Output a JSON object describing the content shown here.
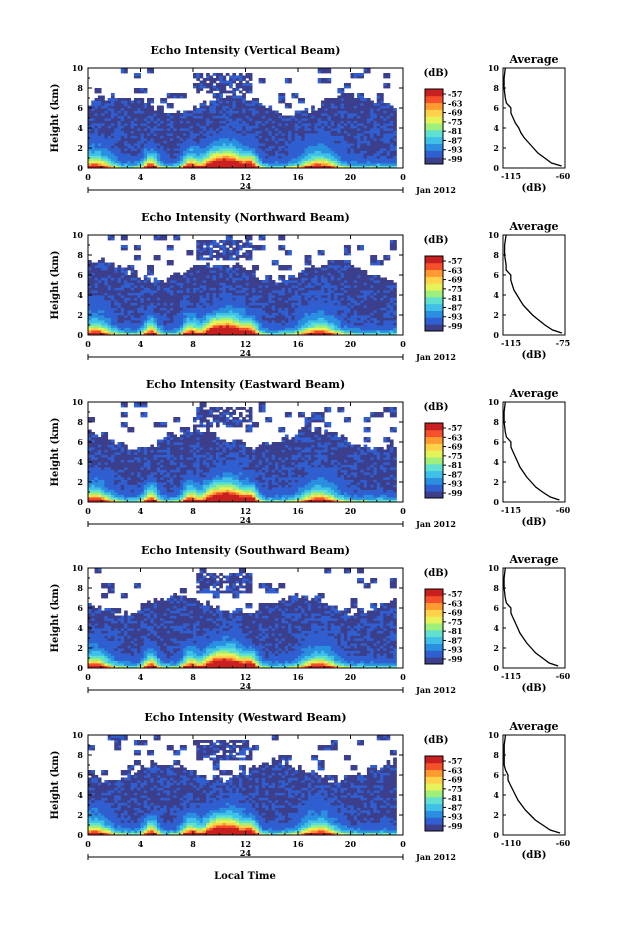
{
  "figure": {
    "xlabel": "Local Time",
    "date_label": "Jan 2012",
    "day_label": "24",
    "avg_title": "Average",
    "avg_xlabel": "(dB)",
    "colorbar_unit": "(dB)",
    "ylabel": "Height (km)",
    "colorbar_ticks": [
      "-57",
      "-63",
      "-69",
      "-75",
      "-81",
      "-87",
      "-93",
      "-99"
    ],
    "colormap": [
      "#3b3f8c",
      "#2f5fd0",
      "#2a8fe0",
      "#3fc0e8",
      "#5fe0d0",
      "#9ff07a",
      "#e6f25a",
      "#ffd24a",
      "#ff9a30",
      "#f5502a",
      "#c82020"
    ]
  },
  "chart_data": [
    {
      "type": "heatmap",
      "title": "Echo Intensity (Vertical Beam)",
      "xlabel": "Local Time",
      "ylabel": "Height (km)",
      "xlim": [
        0,
        24
      ],
      "ylim": [
        0,
        10
      ],
      "x_ticks": [
        "0",
        "4",
        "8",
        "12",
        "16",
        "20",
        "0"
      ],
      "y_ticks": [
        "0",
        "2",
        "4",
        "6",
        "8",
        "10"
      ],
      "colorbar_unit": "(dB)",
      "colorbar_ticks": [
        -57,
        -63,
        -69,
        -75,
        -81,
        -87,
        -93,
        -99
      ],
      "average_profile": {
        "title": "Average",
        "xlabel": "(dB)",
        "x_ticks": [
          "-115",
          "-60"
        ],
        "xlim": [
          -115,
          -60
        ],
        "height_km": [
          0.2,
          0.5,
          1,
          1.5,
          2,
          2.5,
          3,
          3.5,
          4,
          4.5,
          5,
          5.5,
          6,
          6.5,
          7,
          8,
          9,
          10
        ],
        "db": [
          -63,
          -72,
          -78,
          -84,
          -88,
          -92,
          -96,
          -99,
          -101,
          -104,
          -106,
          -108,
          -108,
          -112,
          -113,
          -114,
          -114,
          -113
        ]
      }
    },
    {
      "type": "heatmap",
      "title": "Echo Intensity (Northward Beam)",
      "xlabel": "Local Time",
      "ylabel": "Height (km)",
      "xlim": [
        0,
        24
      ],
      "ylim": [
        0,
        10
      ],
      "x_ticks": [
        "0",
        "4",
        "8",
        "12",
        "16",
        "20",
        "0"
      ],
      "y_ticks": [
        "0",
        "2",
        "4",
        "6",
        "8",
        "10"
      ],
      "colorbar_unit": "(dB)",
      "colorbar_ticks": [
        -57,
        -63,
        -69,
        -75,
        -81,
        -87,
        -93,
        -99
      ],
      "average_profile": {
        "title": "Average",
        "xlabel": "(dB)",
        "x_ticks": [
          "-115",
          "-75"
        ],
        "xlim": [
          -115,
          -75
        ],
        "height_km": [
          0.2,
          0.5,
          1,
          1.5,
          2,
          2.5,
          3,
          3.5,
          4,
          4.5,
          5,
          5.5,
          6,
          6.5,
          7,
          8,
          9,
          10
        ],
        "db": [
          -77,
          -83,
          -88,
          -92,
          -96,
          -99,
          -102,
          -104,
          -106,
          -108,
          -109,
          -110,
          -110,
          -113,
          -113,
          -114,
          -114,
          -113
        ]
      }
    },
    {
      "type": "heatmap",
      "title": "Echo Intensity (Eastward Beam)",
      "xlabel": "Local Time",
      "ylabel": "Height (km)",
      "xlim": [
        0,
        24
      ],
      "ylim": [
        0,
        10
      ],
      "x_ticks": [
        "0",
        "4",
        "8",
        "12",
        "16",
        "20",
        "0"
      ],
      "y_ticks": [
        "0",
        "2",
        "4",
        "6",
        "8",
        "10"
      ],
      "colorbar_unit": "(dB)",
      "colorbar_ticks": [
        -57,
        -63,
        -69,
        -75,
        -81,
        -87,
        -93,
        -99
      ],
      "average_profile": {
        "title": "Average",
        "xlabel": "(dB)",
        "x_ticks": [
          "-115",
          "-60"
        ],
        "xlim": [
          -115,
          -60
        ],
        "height_km": [
          0.2,
          0.5,
          1,
          1.5,
          2,
          2.5,
          3,
          3.5,
          4,
          4.5,
          5,
          5.5,
          6,
          6.5,
          7,
          8,
          9,
          10
        ],
        "db": [
          -65,
          -73,
          -80,
          -86,
          -90,
          -94,
          -97,
          -100,
          -102,
          -104,
          -106,
          -108,
          -108,
          -112,
          -113,
          -114,
          -114,
          -113
        ]
      }
    },
    {
      "type": "heatmap",
      "title": "Echo Intensity (Southward Beam)",
      "xlabel": "Local Time",
      "ylabel": "Height (km)",
      "xlim": [
        0,
        24
      ],
      "ylim": [
        0,
        10
      ],
      "x_ticks": [
        "0",
        "4",
        "8",
        "12",
        "16",
        "20",
        "0"
      ],
      "y_ticks": [
        "0",
        "2",
        "4",
        "6",
        "8",
        "10"
      ],
      "colorbar_unit": "(dB)",
      "colorbar_ticks": [
        -57,
        -63,
        -69,
        -75,
        -81,
        -87,
        -93,
        -99
      ],
      "average_profile": {
        "title": "Average",
        "xlabel": "(dB)",
        "x_ticks": [
          "-115",
          "-60"
        ],
        "xlim": [
          -115,
          -60
        ],
        "height_km": [
          0.2,
          0.5,
          1,
          1.5,
          2,
          2.5,
          3,
          3.5,
          4,
          4.5,
          5,
          5.5,
          6,
          6.5,
          7,
          8,
          9,
          10
        ],
        "db": [
          -66,
          -74,
          -80,
          -86,
          -90,
          -94,
          -97,
          -100,
          -102,
          -104,
          -106,
          -108,
          -108,
          -112,
          -113,
          -114,
          -114,
          -113
        ]
      }
    },
    {
      "type": "heatmap",
      "title": "Echo Intensity (Westward Beam)",
      "xlabel": "Local Time",
      "ylabel": "Height (km)",
      "xlim": [
        0,
        24
      ],
      "ylim": [
        0,
        10
      ],
      "x_ticks": [
        "0",
        "4",
        "8",
        "12",
        "16",
        "20",
        "0"
      ],
      "y_ticks": [
        "0",
        "2",
        "4",
        "6",
        "8",
        "10"
      ],
      "colorbar_unit": "(dB)",
      "colorbar_ticks": [
        -57,
        -63,
        -69,
        -75,
        -81,
        -87,
        -93,
        -99
      ],
      "average_profile": {
        "title": "Average",
        "xlabel": "(dB)",
        "x_ticks": [
          "-110",
          "-60"
        ],
        "xlim": [
          -110,
          -60
        ],
        "height_km": [
          0.2,
          0.5,
          1,
          1.5,
          2,
          2.5,
          3,
          3.5,
          4,
          4.5,
          5,
          5.5,
          6,
          6.5,
          7,
          8,
          9,
          10
        ],
        "db": [
          -64,
          -72,
          -78,
          -84,
          -88,
          -92,
          -95,
          -98,
          -100,
          -102,
          -104,
          -106,
          -106,
          -108,
          -109,
          -109,
          -109,
          -108
        ]
      }
    }
  ]
}
